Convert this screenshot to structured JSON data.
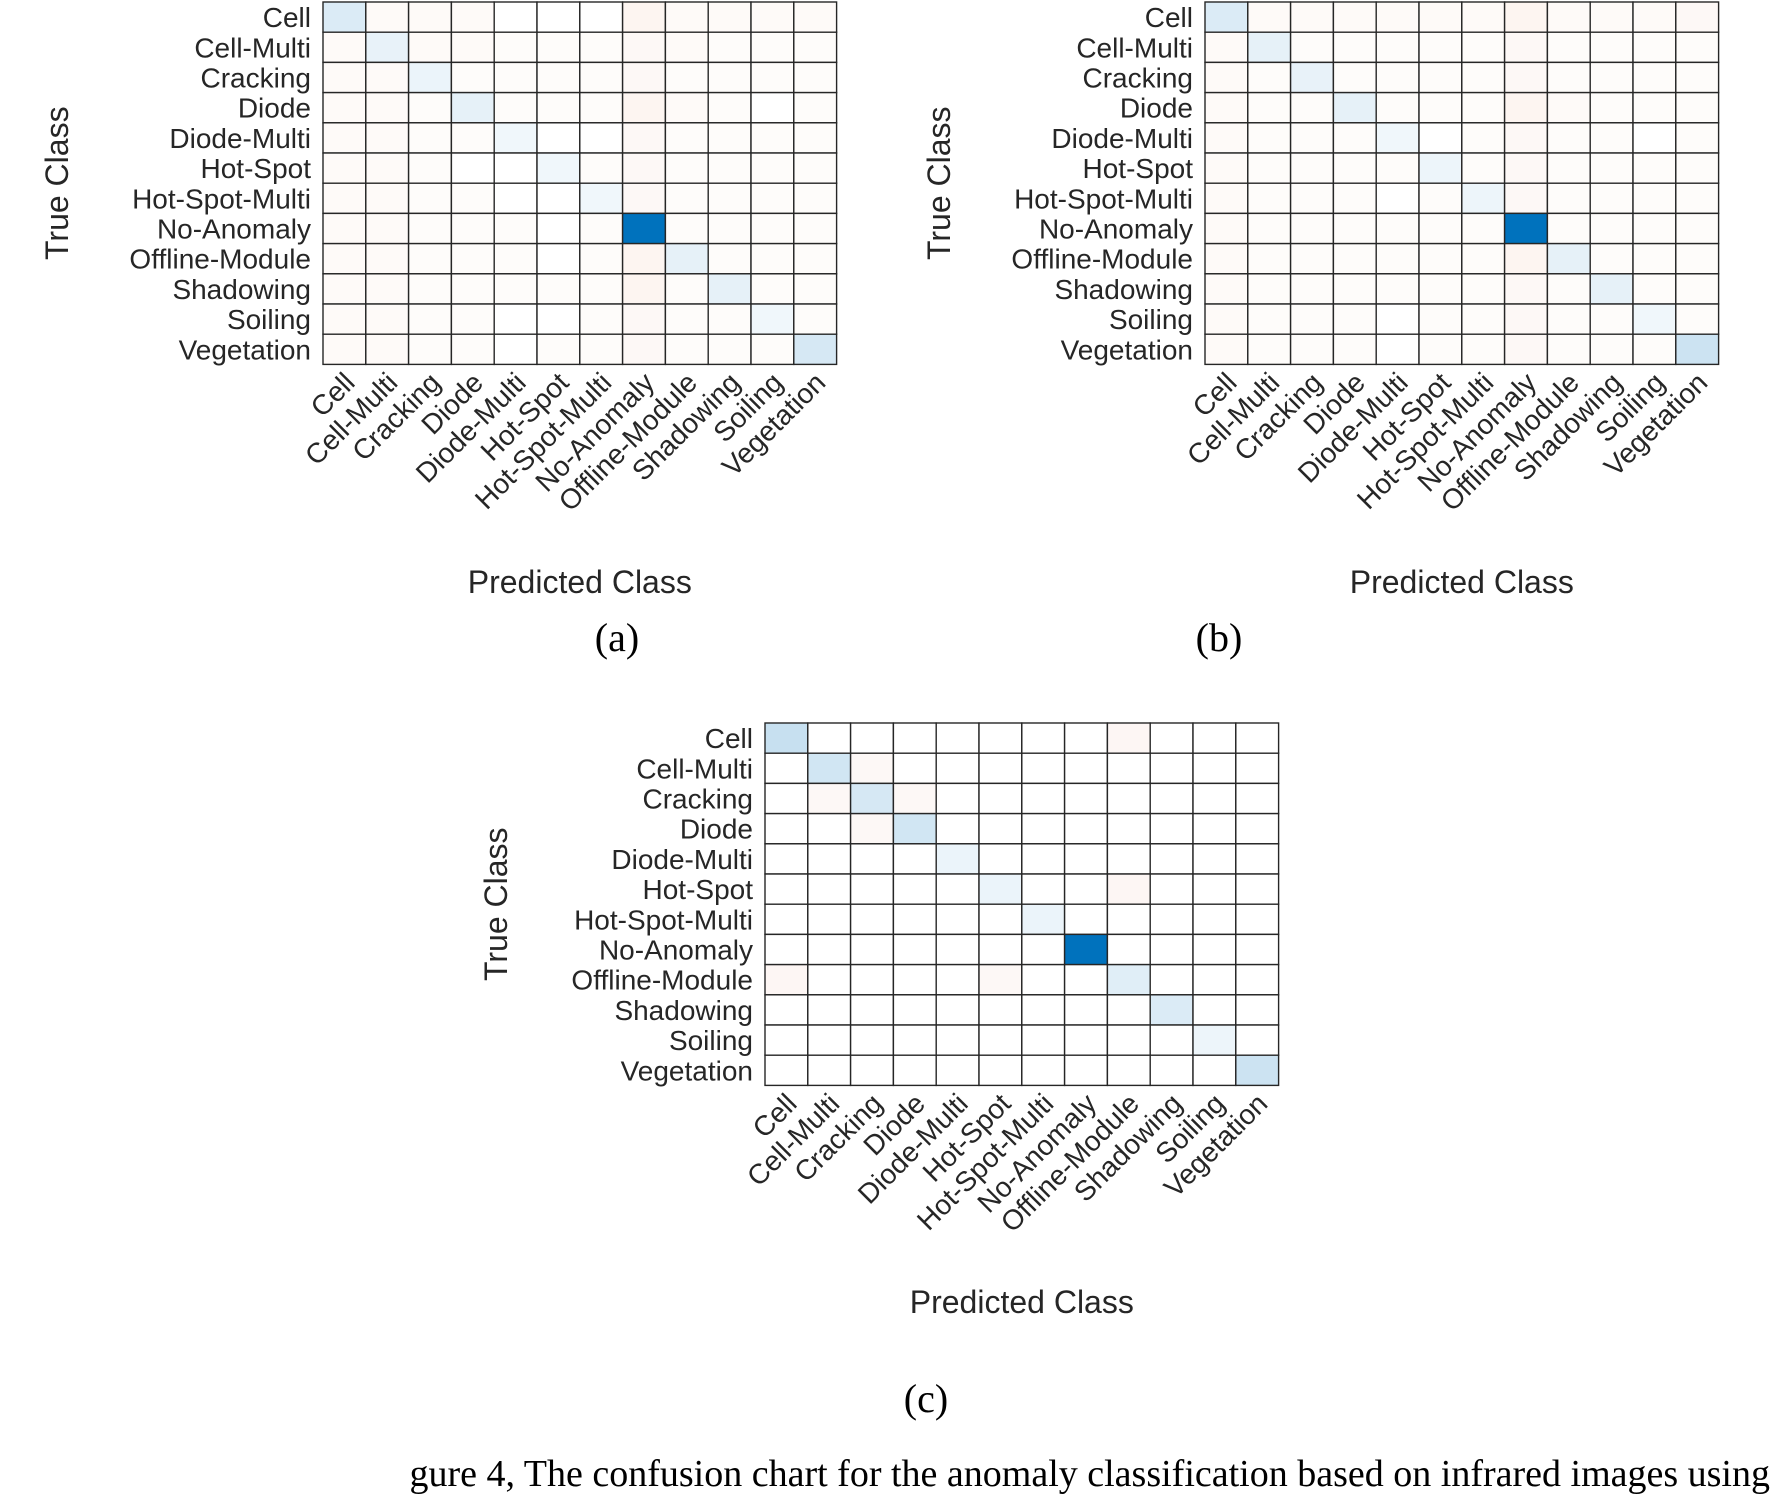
{
  "palette": {
    "positive": "#0072BD",
    "negative": "#D95319",
    "grid": "#262626",
    "text": "#262626"
  },
  "chart_data": [
    {
      "type": "heatmap",
      "panel": "(a)",
      "xlabel": "Predicted Class",
      "ylabel": "True Class",
      "classes": [
        "Cell",
        "Cell-Multi",
        "Cracking",
        "Diode",
        "Diode-Multi",
        "Hot-Spot",
        "Hot-Spot-Multi",
        "No-Anomaly",
        "Offline-Module",
        "Shadowing",
        "Soiling",
        "Vegetation"
      ],
      "matrix": [
        [
          0.14,
          -0.03,
          -0.03,
          -0.03,
          0,
          0,
          0,
          -0.06,
          -0.03,
          -0.03,
          -0.03,
          -0.03
        ],
        [
          -0.03,
          0.09,
          -0.03,
          -0.03,
          -0.02,
          -0.02,
          -0.02,
          -0.04,
          -0.03,
          -0.02,
          -0.02,
          -0.02
        ],
        [
          -0.03,
          -0.03,
          0.08,
          -0.02,
          -0.02,
          -0.02,
          -0.02,
          -0.04,
          -0.02,
          -0.02,
          -0.02,
          -0.02
        ],
        [
          -0.03,
          -0.03,
          -0.02,
          0.1,
          -0.02,
          -0.02,
          -0.02,
          -0.06,
          -0.03,
          -0.02,
          0,
          -0.02
        ],
        [
          -0.03,
          -0.03,
          -0.02,
          -0.02,
          0.06,
          0,
          0,
          -0.04,
          -0.02,
          -0.02,
          -0.02,
          -0.02
        ],
        [
          -0.03,
          -0.03,
          -0.02,
          0,
          0,
          0.06,
          -0.02,
          -0.04,
          -0.02,
          -0.02,
          -0.02,
          -0.02
        ],
        [
          -0.03,
          -0.03,
          -0.02,
          -0.02,
          0,
          0,
          0.06,
          -0.04,
          -0.02,
          -0.02,
          -0.02,
          -0.02
        ],
        [
          -0.03,
          -0.03,
          -0.02,
          -0.02,
          -0.02,
          0,
          -0.02,
          1.0,
          -0.02,
          -0.02,
          -0.02,
          -0.02
        ],
        [
          -0.03,
          -0.03,
          -0.02,
          -0.02,
          -0.02,
          0,
          -0.02,
          -0.06,
          0.1,
          -0.02,
          -0.02,
          -0.02
        ],
        [
          -0.03,
          -0.03,
          -0.02,
          -0.02,
          -0.02,
          -0.02,
          -0.02,
          -0.06,
          -0.02,
          0.1,
          -0.02,
          -0.02
        ],
        [
          -0.03,
          -0.03,
          -0.02,
          -0.02,
          0,
          0,
          -0.02,
          -0.04,
          -0.02,
          -0.02,
          0.06,
          -0.02
        ],
        [
          -0.03,
          -0.03,
          -0.02,
          -0.02,
          0,
          -0.02,
          -0.02,
          -0.04,
          -0.02,
          -0.02,
          -0.02,
          0.16
        ]
      ]
    },
    {
      "type": "heatmap",
      "panel": "(b)",
      "xlabel": "Predicted Class",
      "ylabel": "True Class",
      "classes": [
        "Cell",
        "Cell-Multi",
        "Cracking",
        "Diode",
        "Diode-Multi",
        "Hot-Spot",
        "Hot-Spot-Multi",
        "No-Anomaly",
        "Offline-Module",
        "Shadowing",
        "Soiling",
        "Vegetation"
      ],
      "matrix": [
        [
          0.14,
          -0.03,
          -0.03,
          -0.03,
          -0.03,
          -0.03,
          -0.03,
          -0.06,
          -0.03,
          -0.03,
          -0.03,
          -0.04
        ],
        [
          -0.03,
          0.1,
          -0.02,
          -0.02,
          -0.02,
          -0.02,
          -0.02,
          -0.04,
          -0.02,
          -0.02,
          -0.02,
          -0.02
        ],
        [
          -0.03,
          -0.02,
          0.09,
          -0.02,
          -0.02,
          -0.02,
          -0.02,
          -0.04,
          -0.02,
          -0.02,
          -0.02,
          -0.02
        ],
        [
          -0.03,
          -0.02,
          -0.02,
          0.1,
          -0.02,
          -0.02,
          -0.02,
          -0.06,
          -0.03,
          -0.02,
          -0.02,
          -0.02
        ],
        [
          -0.03,
          -0.02,
          -0.02,
          -0.02,
          0.06,
          0,
          -0.02,
          -0.04,
          -0.02,
          -0.02,
          0,
          -0.02
        ],
        [
          -0.03,
          -0.02,
          -0.02,
          -0.02,
          -0.02,
          0.07,
          -0.02,
          -0.04,
          -0.02,
          -0.02,
          -0.02,
          -0.02
        ],
        [
          -0.03,
          -0.02,
          -0.02,
          -0.02,
          0,
          -0.02,
          0.07,
          -0.04,
          -0.02,
          -0.02,
          -0.02,
          -0.02
        ],
        [
          -0.03,
          -0.02,
          -0.02,
          -0.02,
          -0.02,
          -0.02,
          -0.02,
          1.0,
          -0.02,
          -0.02,
          -0.02,
          -0.02
        ],
        [
          -0.03,
          -0.02,
          -0.02,
          -0.02,
          -0.02,
          -0.02,
          -0.02,
          -0.06,
          0.1,
          -0.02,
          -0.02,
          -0.02
        ],
        [
          -0.03,
          -0.02,
          -0.02,
          -0.02,
          -0.02,
          -0.02,
          -0.02,
          -0.04,
          -0.02,
          0.1,
          -0.02,
          -0.02
        ],
        [
          -0.03,
          -0.02,
          -0.02,
          -0.02,
          0,
          -0.02,
          -0.02,
          -0.04,
          -0.02,
          -0.02,
          0.06,
          -0.02
        ],
        [
          -0.03,
          -0.02,
          -0.02,
          -0.02,
          0,
          -0.02,
          -0.02,
          -0.04,
          -0.02,
          -0.02,
          -0.02,
          0.2
        ]
      ]
    },
    {
      "type": "heatmap",
      "panel": "(c)",
      "xlabel": "Predicted Class",
      "ylabel": "True Class",
      "classes": [
        "Cell",
        "Cell-Multi",
        "Cracking",
        "Diode",
        "Diode-Multi",
        "Hot-Spot",
        "Hot-Spot-Multi",
        "No-Anomaly",
        "Offline-Module",
        "Shadowing",
        "Soiling",
        "Vegetation"
      ],
      "matrix": [
        [
          0.22,
          0,
          0,
          0,
          0,
          0,
          0,
          0,
          -0.05,
          0,
          0,
          0
        ],
        [
          0,
          0.18,
          -0.04,
          0,
          0,
          0,
          0,
          0,
          0,
          0,
          0,
          0
        ],
        [
          0,
          -0.04,
          0.16,
          -0.04,
          0,
          0,
          0,
          0,
          0,
          0,
          0,
          0
        ],
        [
          0,
          0,
          -0.04,
          0.18,
          0,
          0,
          0,
          0,
          0,
          0,
          0,
          0
        ],
        [
          0,
          0,
          0,
          0,
          0.08,
          0,
          0,
          0,
          0,
          0,
          0,
          0
        ],
        [
          0,
          0,
          0,
          0,
          0,
          0.08,
          0,
          0,
          -0.05,
          0,
          0,
          0
        ],
        [
          0,
          0,
          0,
          0,
          0,
          0,
          0.08,
          0,
          0,
          0,
          0,
          0
        ],
        [
          0,
          0,
          0,
          0,
          0,
          0,
          0,
          1.0,
          0,
          0,
          0,
          0
        ],
        [
          -0.05,
          0,
          0,
          0,
          0,
          -0.04,
          0,
          0,
          0.12,
          0,
          0,
          0
        ],
        [
          0,
          0,
          0,
          0,
          0,
          0,
          0,
          0,
          0,
          0.14,
          0,
          0
        ],
        [
          0,
          0,
          0,
          0,
          0,
          0,
          0,
          0,
          0,
          0,
          0.07,
          0
        ],
        [
          0,
          0,
          0,
          0,
          0,
          0,
          0,
          0,
          0,
          0,
          0,
          0.2
        ]
      ]
    }
  ],
  "caption": "gure 4, The confusion chart for the anomaly classification based on infrared images using"
}
